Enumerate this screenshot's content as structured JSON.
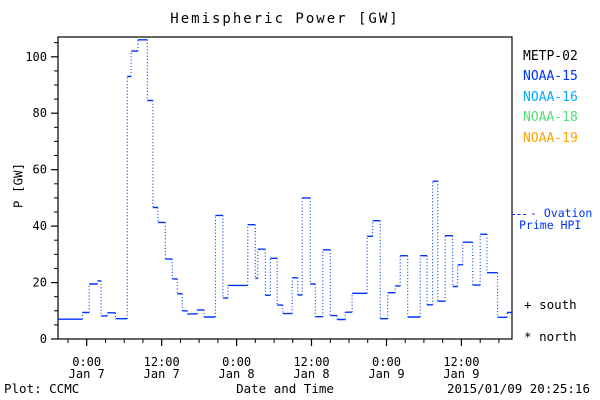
{
  "title": "Hemispheric Power [GW]",
  "footer": {
    "plot_credit": "Plot: CCMC",
    "timestamp": "2015/01/09 20:25:16"
  },
  "legend": {
    "satellites": [
      {
        "label": "METP-02",
        "color": "#000000"
      },
      {
        "label": "NOAA-15",
        "color": "#0033ff"
      },
      {
        "label": "NOAA-16",
        "color": "#00aaff"
      },
      {
        "label": "NOAA-18",
        "color": "#55dd77"
      },
      {
        "label": "NOAA-19",
        "color": "#ffa500"
      }
    ],
    "ovation": {
      "line1": "- Ovation",
      "line2": "Prime HPI",
      "color": "#0033ff"
    },
    "markers": [
      {
        "symbol": "+",
        "label": "south"
      },
      {
        "symbol": "*",
        "label": "north"
      }
    ]
  },
  "chart_data": {
    "type": "line",
    "title": "Hemispheric Power [GW]",
    "xlabel": "Date and Time",
    "ylabel": "P [GW]",
    "ylim": [
      0,
      107
    ],
    "grid": false,
    "legend_position": "right",
    "y_axis": {
      "major_ticks": [
        0,
        20,
        40,
        60,
        80,
        100
      ],
      "minor_step": 5
    },
    "x_axis": {
      "units": "hours from 2015-01-07 00:00 UT",
      "range_hours": [
        -4.6,
        68.1
      ],
      "minor_step_hours": 3,
      "major_ticks": [
        {
          "hour": 0,
          "line1": "0:00",
          "line2": "Jan 7"
        },
        {
          "hour": 12,
          "line1": "12:00",
          "line2": "Jan 7"
        },
        {
          "hour": 24,
          "line1": "0:00",
          "line2": "Jan 8"
        },
        {
          "hour": 36,
          "line1": "12:00",
          "line2": "Jan 8"
        },
        {
          "hour": 48,
          "line1": "0:00",
          "line2": "Jan 9"
        },
        {
          "hour": 60,
          "line1": "12:00",
          "line2": "Jan 9"
        }
      ]
    },
    "series": [
      {
        "name": "Ovation Prime HPI",
        "color": "#0033ff",
        "style": "stepped-dotted",
        "end_hour": 68.1,
        "steps_hour_gw": [
          [
            -4.6,
            7.0
          ],
          [
            -0.7,
            9.4
          ],
          [
            0.4,
            19.5
          ],
          [
            1.7,
            20.6
          ],
          [
            2.3,
            8.2
          ],
          [
            3.3,
            9.3
          ],
          [
            4.6,
            7.2
          ],
          [
            6.5,
            93.0
          ],
          [
            7.1,
            102.0
          ],
          [
            8.2,
            106.0
          ],
          [
            9.7,
            84.5
          ],
          [
            10.6,
            46.6
          ],
          [
            11.4,
            41.3
          ],
          [
            12.6,
            28.3
          ],
          [
            13.7,
            21.3
          ],
          [
            14.5,
            16.0
          ],
          [
            15.3,
            10.0
          ],
          [
            16.1,
            8.9
          ],
          [
            17.7,
            10.3
          ],
          [
            18.8,
            7.8
          ],
          [
            20.6,
            43.8
          ],
          [
            21.8,
            14.5
          ],
          [
            22.6,
            19.0
          ],
          [
            25.8,
            40.5
          ],
          [
            27.0,
            21.5
          ],
          [
            27.4,
            31.8
          ],
          [
            28.6,
            15.5
          ],
          [
            29.4,
            28.6
          ],
          [
            30.5,
            12.0
          ],
          [
            31.4,
            9.0
          ],
          [
            32.9,
            21.7
          ],
          [
            33.8,
            15.6
          ],
          [
            34.5,
            50.0
          ],
          [
            35.8,
            19.5
          ],
          [
            36.6,
            7.9
          ],
          [
            37.8,
            31.6
          ],
          [
            39.0,
            8.3
          ],
          [
            40.1,
            6.9
          ],
          [
            41.4,
            9.5
          ],
          [
            42.5,
            16.2
          ],
          [
            44.9,
            36.4
          ],
          [
            45.8,
            41.9
          ],
          [
            47.0,
            7.2
          ],
          [
            48.2,
            16.4
          ],
          [
            49.4,
            18.8
          ],
          [
            50.2,
            29.5
          ],
          [
            51.4,
            7.8
          ],
          [
            53.4,
            29.5
          ],
          [
            54.5,
            12.1
          ],
          [
            55.4,
            55.9
          ],
          [
            56.2,
            13.4
          ],
          [
            57.4,
            36.6
          ],
          [
            58.6,
            18.6
          ],
          [
            59.4,
            26.3
          ],
          [
            60.2,
            34.3
          ],
          [
            61.8,
            19.1
          ],
          [
            63.0,
            37.1
          ],
          [
            64.1,
            23.5
          ],
          [
            65.8,
            7.7
          ],
          [
            67.3,
            9.4
          ]
        ]
      }
    ]
  }
}
